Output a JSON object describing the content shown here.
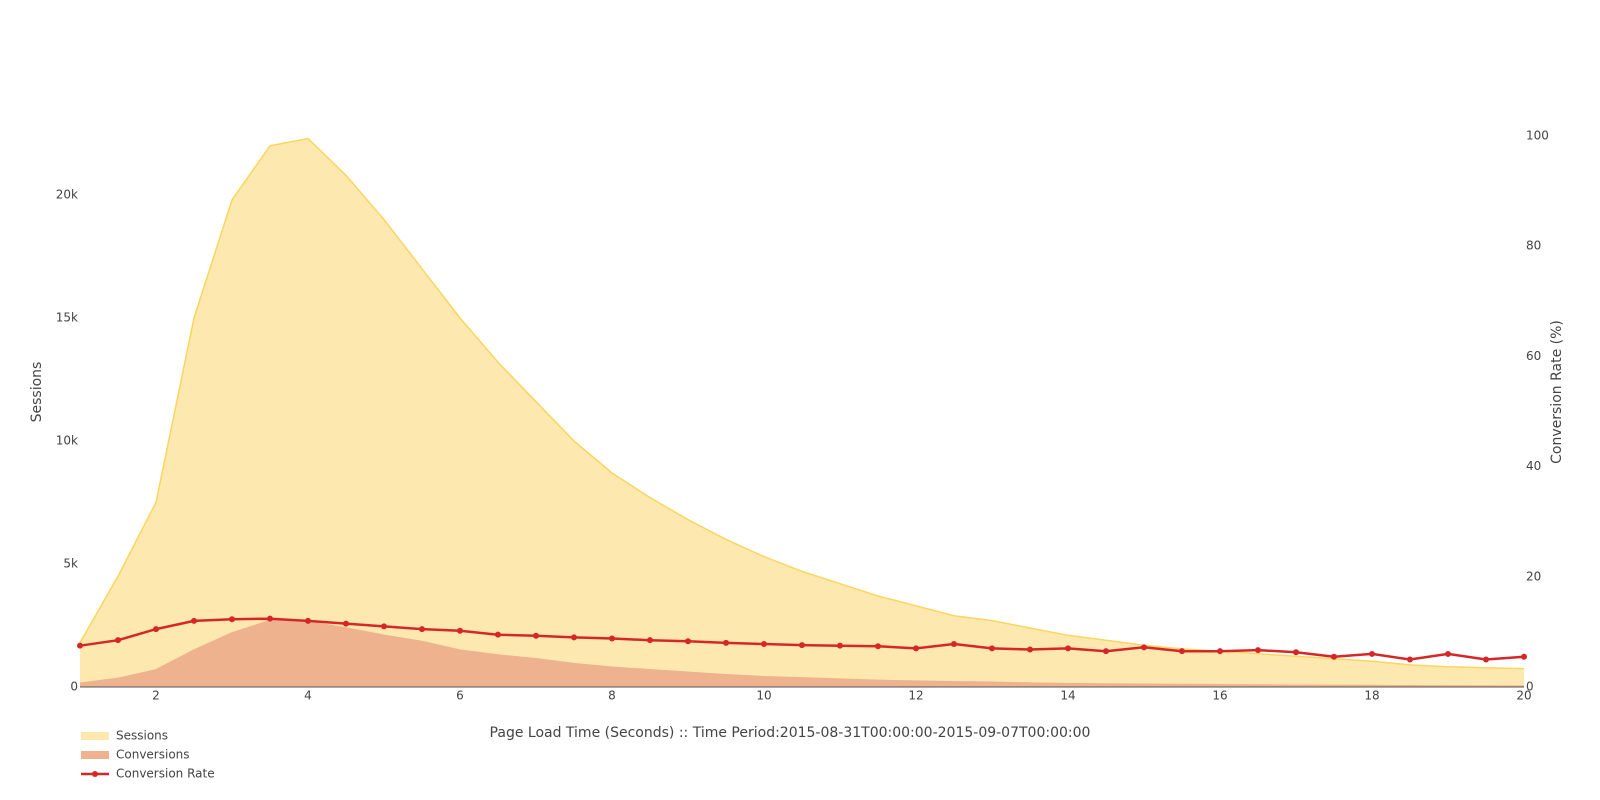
{
  "chart_data": {
    "type": "area-line",
    "x_label": "Page Load Time (Seconds) :: Time Period:2015-08-31T00:00:00-2015-09-07T00:00:00",
    "y_label": "Sessions",
    "y2_label": "Conversion Rate (%)",
    "x": [
      1,
      1.5,
      2,
      2.5,
      3,
      3.5,
      4,
      4.5,
      5,
      5.5,
      6,
      6.5,
      7,
      7.5,
      8,
      8.5,
      9,
      9.5,
      10,
      10.5,
      11,
      11.5,
      12,
      12.5,
      13,
      13.5,
      14,
      14.5,
      15,
      15.5,
      16,
      16.5,
      17,
      17.5,
      18,
      18.5,
      19,
      19.5,
      20
    ],
    "xlim": [
      1,
      20
    ],
    "xticks": [
      2,
      4,
      6,
      8,
      10,
      12,
      14,
      16,
      18,
      20
    ],
    "ylim": [
      0,
      22400
    ],
    "yticks": [
      0,
      {
        "value": 5000,
        "label": "5k"
      },
      {
        "value": 10000,
        "label": "10k"
      },
      {
        "value": 15000,
        "label": "15k"
      },
      {
        "value": 20000,
        "label": "20k"
      }
    ],
    "y2lim": [
      0,
      100
    ],
    "y2ticks": [
      0,
      20,
      40,
      60,
      80,
      100
    ],
    "legend": "bottom-left",
    "series": [
      {
        "name": "Sessions",
        "kind": "area",
        "color": "#fcd55f",
        "fill": "#fde9b0",
        "values": [
          1800,
          4500,
          7500,
          15000,
          19800,
          22000,
          22300,
          20800,
          19000,
          17000,
          15000,
          13200,
          11600,
          10000,
          8700,
          7700,
          6800,
          6000,
          5300,
          4700,
          4200,
          3700,
          3300,
          2900,
          2700,
          2400,
          2100,
          1900,
          1700,
          1550,
          1450,
          1350,
          1250,
          1150,
          1050,
          900,
          820,
          780,
          750
        ]
      },
      {
        "name": "Conversions",
        "kind": "area",
        "color": "#eeb38e",
        "fill": "#eeb38e",
        "values": [
          150,
          350,
          700,
          1500,
          2200,
          2700,
          2650,
          2400,
          2100,
          1850,
          1500,
          1300,
          1150,
          950,
          800,
          700,
          600,
          500,
          420,
          370,
          320,
          270,
          240,
          210,
          190,
          160,
          140,
          120,
          110,
          100,
          90,
          80,
          70,
          65,
          60,
          50,
          45,
          40,
          35
        ]
      },
      {
        "name": "Conversion Rate",
        "kind": "line",
        "axis": "y2",
        "color": "#d62728",
        "values": [
          7.5,
          8.5,
          10.5,
          12,
          12.3,
          12.4,
          12,
          11.5,
          11,
          10.5,
          10.2,
          9.5,
          9.3,
          9,
          8.8,
          8.5,
          8.3,
          8,
          7.8,
          7.6,
          7.5,
          7.4,
          7,
          7.8,
          7,
          6.8,
          7,
          6.5,
          7.2,
          6.5,
          6.5,
          6.7,
          6.3,
          5.5,
          6,
          5,
          6,
          5,
          5.5
        ]
      }
    ]
  }
}
